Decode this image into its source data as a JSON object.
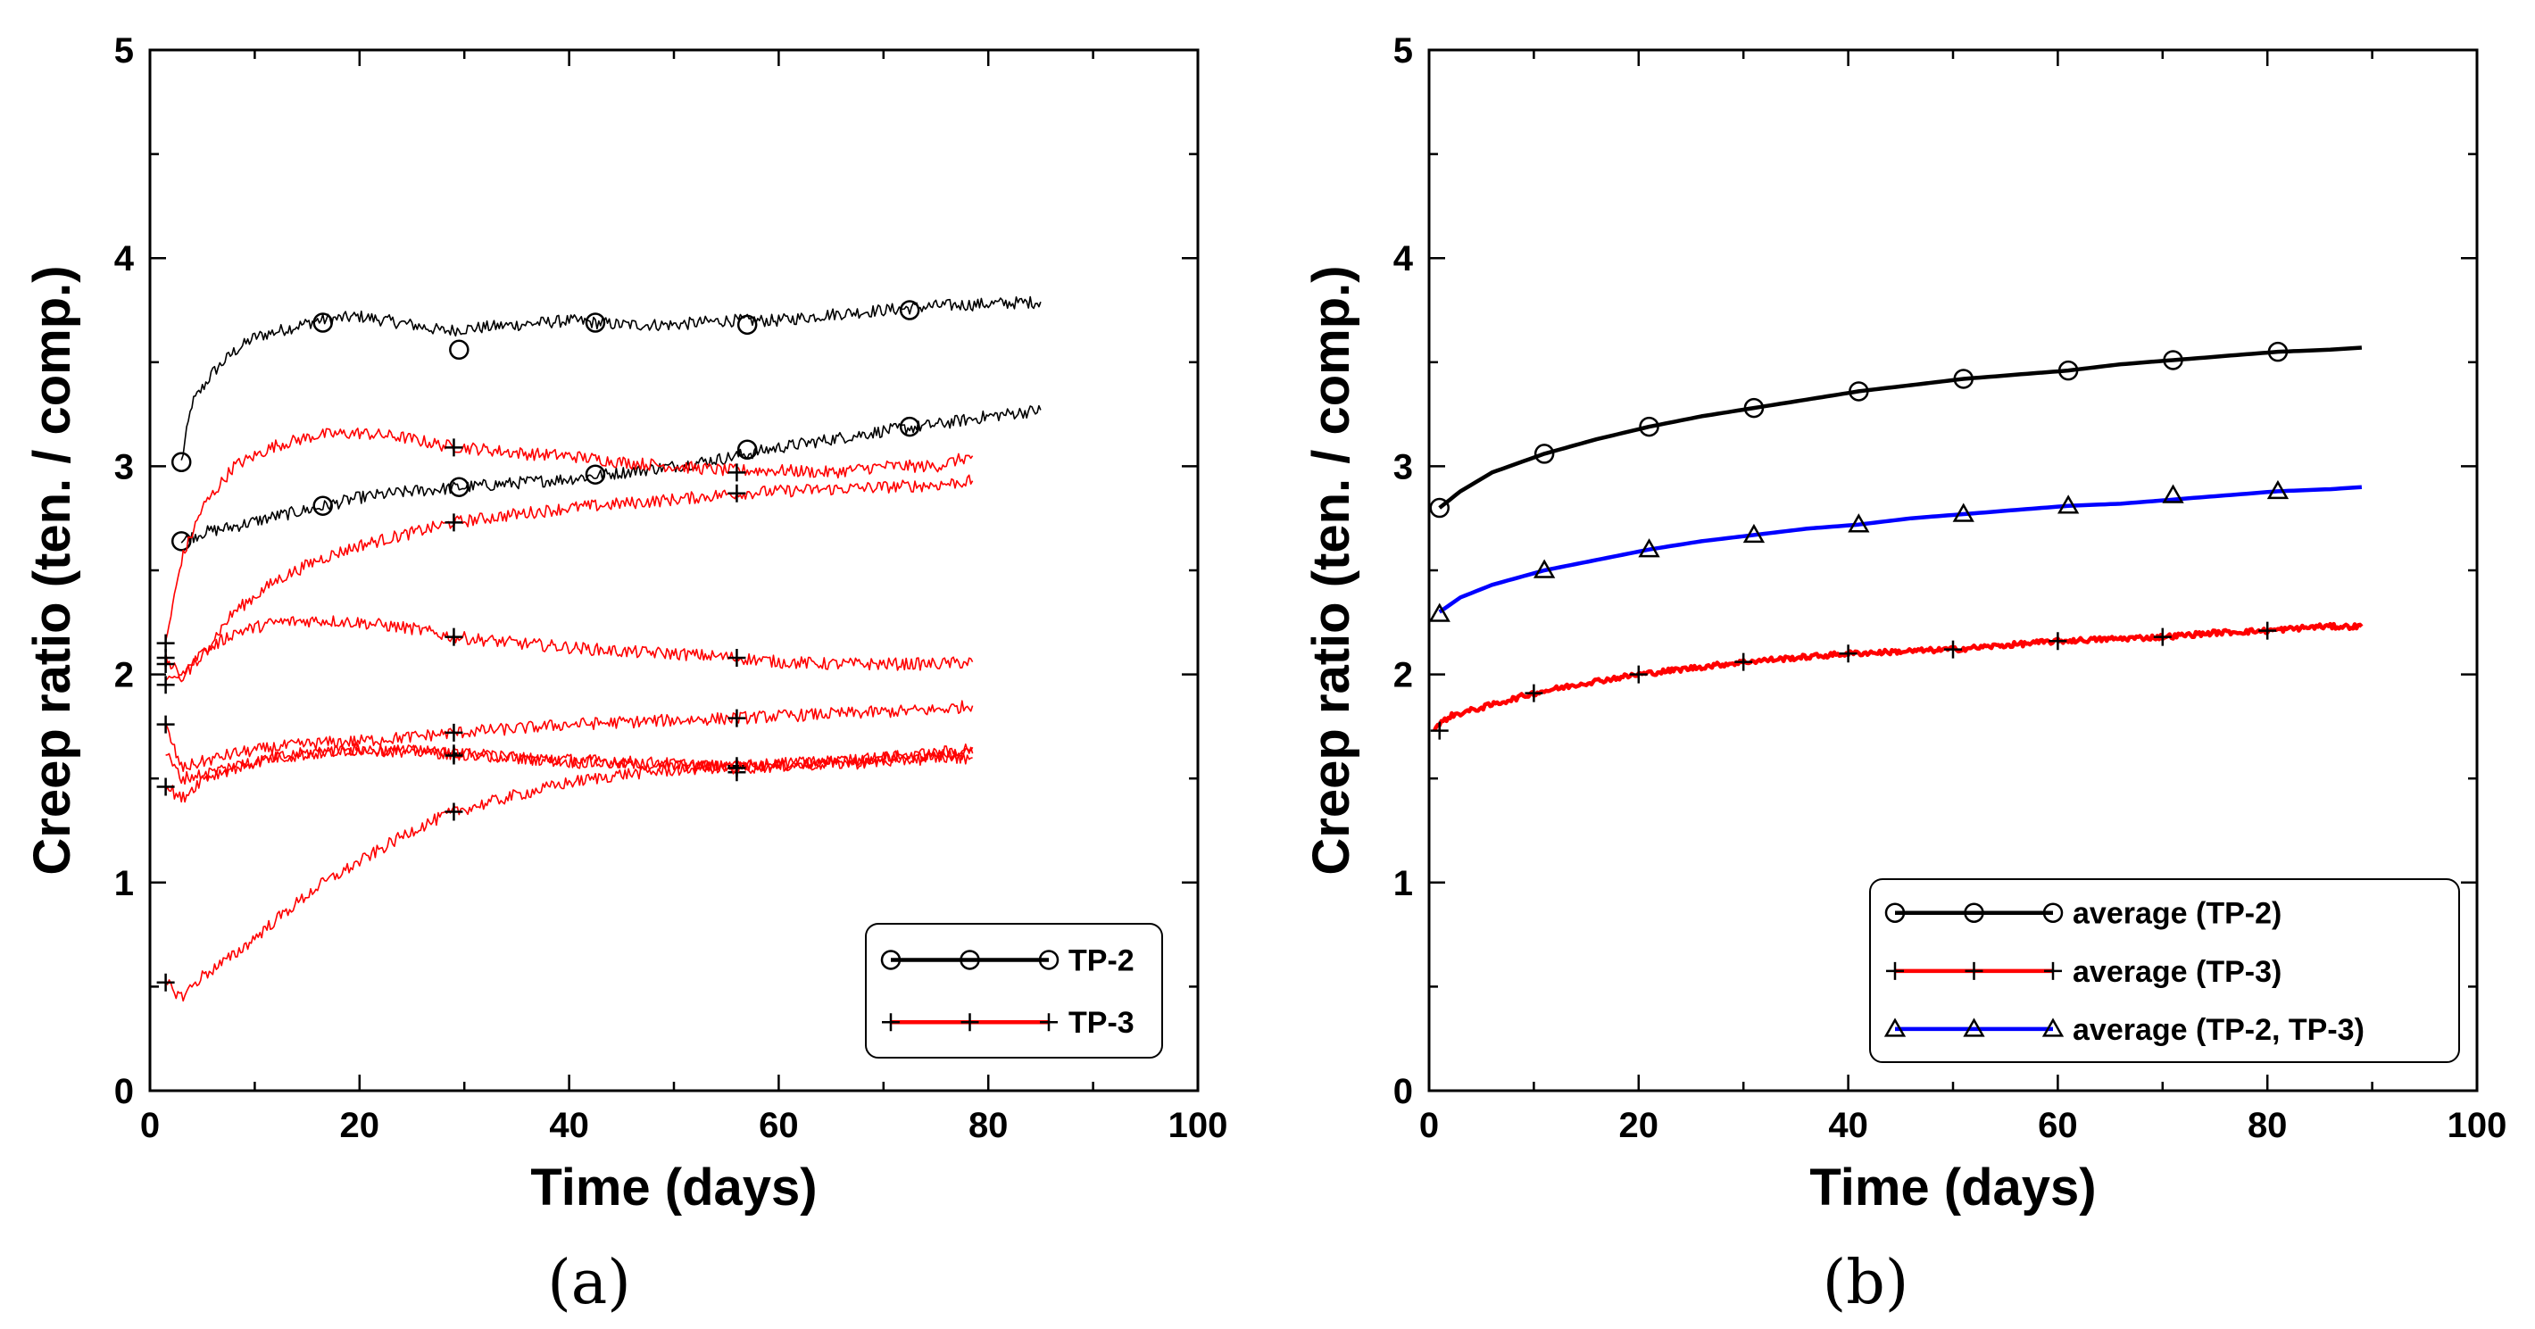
{
  "chart_data": [
    {
      "type": "line",
      "panel_label": "(a)",
      "xlabel": "Time (days)",
      "ylabel": "Creep ratio (ten. / comp.)",
      "xlim": [
        0,
        100
      ],
      "ylim": [
        0,
        5
      ],
      "xticks": [
        "0",
        "20",
        "40",
        "60",
        "80",
        "100"
      ],
      "yticks": [
        "0",
        "1",
        "2",
        "3",
        "4",
        "5"
      ],
      "grid": false,
      "legend_position": "bottom-right",
      "legend": [
        {
          "name": "TP-2",
          "color": "#000000",
          "marker": "circle"
        },
        {
          "name": "TP-3",
          "color": "#ff0000",
          "marker": "plus"
        }
      ],
      "series": [
        {
          "group": "TP-2",
          "color": "#000000",
          "marker": "circle",
          "noisy": true,
          "x": [
            3,
            4,
            6,
            8,
            10,
            13,
            16,
            20,
            25,
            28,
            30,
            35,
            40,
            45,
            50,
            55,
            60,
            65,
            70,
            75,
            80,
            85
          ],
          "y": [
            3.02,
            3.3,
            3.45,
            3.55,
            3.62,
            3.66,
            3.7,
            3.72,
            3.68,
            3.65,
            3.66,
            3.68,
            3.7,
            3.68,
            3.68,
            3.7,
            3.7,
            3.73,
            3.75,
            3.77,
            3.78,
            3.79
          ],
          "markers_x": [
            3,
            16.5,
            29.5,
            42.5,
            57,
            72.5
          ],
          "markers_y": [
            3.02,
            3.69,
            3.56,
            3.69,
            3.68,
            3.75
          ]
        },
        {
          "group": "TP-2",
          "color": "#000000",
          "marker": "circle",
          "noisy": true,
          "x": [
            3,
            5,
            8,
            12,
            16,
            20,
            25,
            30,
            35,
            40,
            45,
            50,
            55,
            60,
            65,
            70,
            75,
            80,
            85
          ],
          "y": [
            2.64,
            2.68,
            2.71,
            2.76,
            2.8,
            2.85,
            2.88,
            2.9,
            2.92,
            2.94,
            2.97,
            3.0,
            3.04,
            3.09,
            3.13,
            3.17,
            3.2,
            3.24,
            3.27
          ],
          "markers_x": [
            3,
            16.5,
            29.5,
            42.5,
            57,
            72.5
          ],
          "markers_y": [
            2.64,
            2.81,
            2.9,
            2.96,
            3.08,
            3.19
          ]
        },
        {
          "group": "TP-3",
          "color": "#ff0000",
          "marker": "plus",
          "noisy": true,
          "x": [
            1.5,
            3,
            5,
            8,
            12,
            16,
            20,
            24,
            28,
            32,
            36,
            40,
            45,
            50,
            55,
            60,
            65,
            70,
            75,
            78.5
          ],
          "y": [
            2.15,
            2.55,
            2.8,
            3.0,
            3.1,
            3.15,
            3.16,
            3.14,
            3.1,
            3.08,
            3.06,
            3.05,
            3.02,
            3.0,
            2.98,
            2.98,
            2.97,
            3.0,
            3.0,
            3.05
          ],
          "markers_x": [
            1.5,
            29,
            56
          ],
          "markers_y": [
            2.15,
            3.09,
            2.97
          ]
        },
        {
          "group": "TP-3",
          "color": "#ff0000",
          "marker": "plus",
          "noisy": true,
          "x": [
            1.5,
            3,
            5,
            8,
            12,
            16,
            20,
            25,
            29,
            35,
            40,
            45,
            50,
            56,
            60,
            65,
            70,
            75,
            78.5
          ],
          "y": [
            1.95,
            2.0,
            2.1,
            2.3,
            2.45,
            2.55,
            2.62,
            2.68,
            2.73,
            2.77,
            2.8,
            2.82,
            2.84,
            2.87,
            2.88,
            2.89,
            2.9,
            2.91,
            2.93
          ],
          "markers_x": [
            1.5,
            29,
            56
          ],
          "markers_y": [
            1.95,
            2.73,
            2.87
          ]
        },
        {
          "group": "TP-3",
          "color": "#ff0000",
          "marker": "plus",
          "noisy": true,
          "x": [
            1.5,
            3,
            5,
            8,
            12,
            16,
            20,
            25,
            29,
            35,
            40,
            45,
            50,
            56,
            60,
            65,
            70,
            75,
            78.5
          ],
          "y": [
            2.08,
            1.98,
            2.1,
            2.2,
            2.25,
            2.26,
            2.25,
            2.22,
            2.18,
            2.15,
            2.13,
            2.11,
            2.1,
            2.08,
            2.06,
            2.05,
            2.05,
            2.05,
            2.06
          ],
          "markers_x": [
            1.5,
            29,
            56
          ],
          "markers_y": [
            2.08,
            2.18,
            2.08
          ]
        },
        {
          "group": "TP-3",
          "color": "#ff0000",
          "marker": "plus",
          "noisy": true,
          "x": [
            1.5,
            3,
            5,
            8,
            12,
            16,
            20,
            25,
            29,
            35,
            40,
            45,
            50,
            56,
            60,
            65,
            70,
            75,
            78.5
          ],
          "y": [
            1.75,
            1.55,
            1.58,
            1.62,
            1.65,
            1.67,
            1.68,
            1.7,
            1.72,
            1.74,
            1.76,
            1.77,
            1.78,
            1.79,
            1.8,
            1.81,
            1.82,
            1.83,
            1.85
          ],
          "markers_x": [
            1.5,
            29,
            56
          ],
          "markers_y": [
            1.76,
            1.72,
            1.79
          ]
        },
        {
          "group": "TP-3",
          "color": "#ff0000",
          "marker": "plus",
          "noisy": true,
          "x": [
            1.5,
            3,
            5,
            8,
            12,
            16,
            20,
            25,
            29,
            35,
            40,
            45,
            50,
            56,
            60,
            65,
            70,
            75,
            78.5
          ],
          "y": [
            1.47,
            1.4,
            1.5,
            1.55,
            1.6,
            1.63,
            1.64,
            1.63,
            1.62,
            1.6,
            1.58,
            1.57,
            1.56,
            1.56,
            1.57,
            1.58,
            1.6,
            1.61,
            1.62
          ],
          "markers_x": [
            1.5,
            29,
            56
          ],
          "markers_y": [
            1.46,
            1.62,
            1.53
          ]
        },
        {
          "group": "TP-3",
          "color": "#ff0000",
          "marker": "plus",
          "noisy": true,
          "x": [
            1.5,
            3,
            5,
            8,
            12,
            16,
            20,
            25,
            29,
            35,
            40,
            45,
            50,
            56,
            60,
            65,
            70,
            75,
            78.5
          ],
          "y": [
            0.52,
            0.45,
            0.55,
            0.65,
            0.82,
            0.98,
            1.1,
            1.25,
            1.34,
            1.42,
            1.48,
            1.52,
            1.54,
            1.56,
            1.57,
            1.58,
            1.6,
            1.62,
            1.65
          ],
          "markers_x": [
            1.5,
            29,
            56
          ],
          "markers_y": [
            0.52,
            1.34,
            1.56
          ]
        },
        {
          "group": "TP-3",
          "color": "#ff0000",
          "marker": "plus",
          "noisy": true,
          "x": [
            1.5,
            3,
            5,
            8,
            12,
            16,
            20,
            25,
            29,
            35,
            40,
            45,
            50,
            56,
            60,
            65,
            70,
            75,
            78.5
          ],
          "y": [
            1.62,
            1.5,
            1.52,
            1.56,
            1.6,
            1.62,
            1.64,
            1.63,
            1.62,
            1.6,
            1.59,
            1.58,
            1.57,
            1.55,
            1.56,
            1.57,
            1.58,
            1.6,
            1.6
          ],
          "markers_x": [
            1.5,
            29,
            56
          ],
          "markers_y": [
            2.05,
            1.61,
            1.55
          ]
        }
      ]
    },
    {
      "type": "line",
      "panel_label": "(b)",
      "xlabel": "Time (days)",
      "ylabel": "Creep ratio (ten. / comp.)",
      "xlim": [
        0,
        100
      ],
      "ylim": [
        0,
        5
      ],
      "xticks": [
        "0",
        "20",
        "40",
        "60",
        "80",
        "100"
      ],
      "yticks": [
        "0",
        "1",
        "2",
        "3",
        "4",
        "5"
      ],
      "grid": false,
      "legend_position": "bottom-right",
      "legend": [
        {
          "name": "average (TP-2)",
          "color": "#000000",
          "marker": "circle"
        },
        {
          "name": "average (TP-3)",
          "color": "#ff0000",
          "marker": "plus"
        },
        {
          "name": "average (TP-2, TP-3)",
          "color": "#0000ff",
          "marker": "triangle"
        }
      ],
      "series": [
        {
          "name": "average (TP-2)",
          "color": "#000000",
          "marker": "circle",
          "noisy": false,
          "x": [
            1,
            3,
            6,
            11,
            16,
            21,
            26,
            31,
            36,
            41,
            46,
            51,
            56,
            61,
            66,
            71,
            76,
            81,
            86,
            89
          ],
          "y": [
            2.8,
            2.88,
            2.97,
            3.06,
            3.13,
            3.19,
            3.24,
            3.28,
            3.32,
            3.36,
            3.39,
            3.42,
            3.44,
            3.46,
            3.49,
            3.51,
            3.53,
            3.55,
            3.56,
            3.57
          ],
          "markers_x": [
            1,
            11,
            21,
            31,
            41,
            51,
            61,
            71,
            81
          ],
          "markers_y": [
            2.8,
            3.06,
            3.19,
            3.28,
            3.36,
            3.42,
            3.46,
            3.51,
            3.55
          ]
        },
        {
          "name": "average (TP-3)",
          "color": "#ff0000",
          "marker": "plus",
          "noisy": true,
          "x": [
            0.5,
            2,
            5,
            10,
            15,
            20,
            25,
            30,
            35,
            40,
            45,
            50,
            55,
            60,
            65,
            70,
            75,
            80,
            85,
            89
          ],
          "y": [
            1.74,
            1.8,
            1.84,
            1.91,
            1.96,
            2.0,
            2.03,
            2.06,
            2.08,
            2.1,
            2.11,
            2.12,
            2.14,
            2.16,
            2.17,
            2.18,
            2.2,
            2.21,
            2.23,
            2.23
          ],
          "markers_x": [
            1,
            10,
            20,
            30,
            40,
            50,
            60,
            70,
            80
          ],
          "markers_y": [
            1.73,
            1.91,
            2.0,
            2.06,
            2.1,
            2.12,
            2.16,
            2.18,
            2.21
          ]
        },
        {
          "name": "average (TP-2, TP-3)",
          "color": "#0000ff",
          "marker": "triangle",
          "noisy": false,
          "x": [
            1,
            3,
            6,
            11,
            16,
            21,
            26,
            31,
            36,
            41,
            46,
            51,
            56,
            61,
            66,
            71,
            76,
            81,
            86,
            89
          ],
          "y": [
            2.3,
            2.37,
            2.43,
            2.5,
            2.55,
            2.6,
            2.64,
            2.67,
            2.7,
            2.72,
            2.75,
            2.77,
            2.79,
            2.81,
            2.82,
            2.84,
            2.86,
            2.88,
            2.89,
            2.9
          ],
          "markers_x": [
            1,
            11,
            21,
            31,
            41,
            51,
            61,
            71,
            81
          ],
          "markers_y": [
            2.29,
            2.5,
            2.6,
            2.67,
            2.72,
            2.77,
            2.81,
            2.86,
            2.88
          ]
        }
      ]
    }
  ]
}
